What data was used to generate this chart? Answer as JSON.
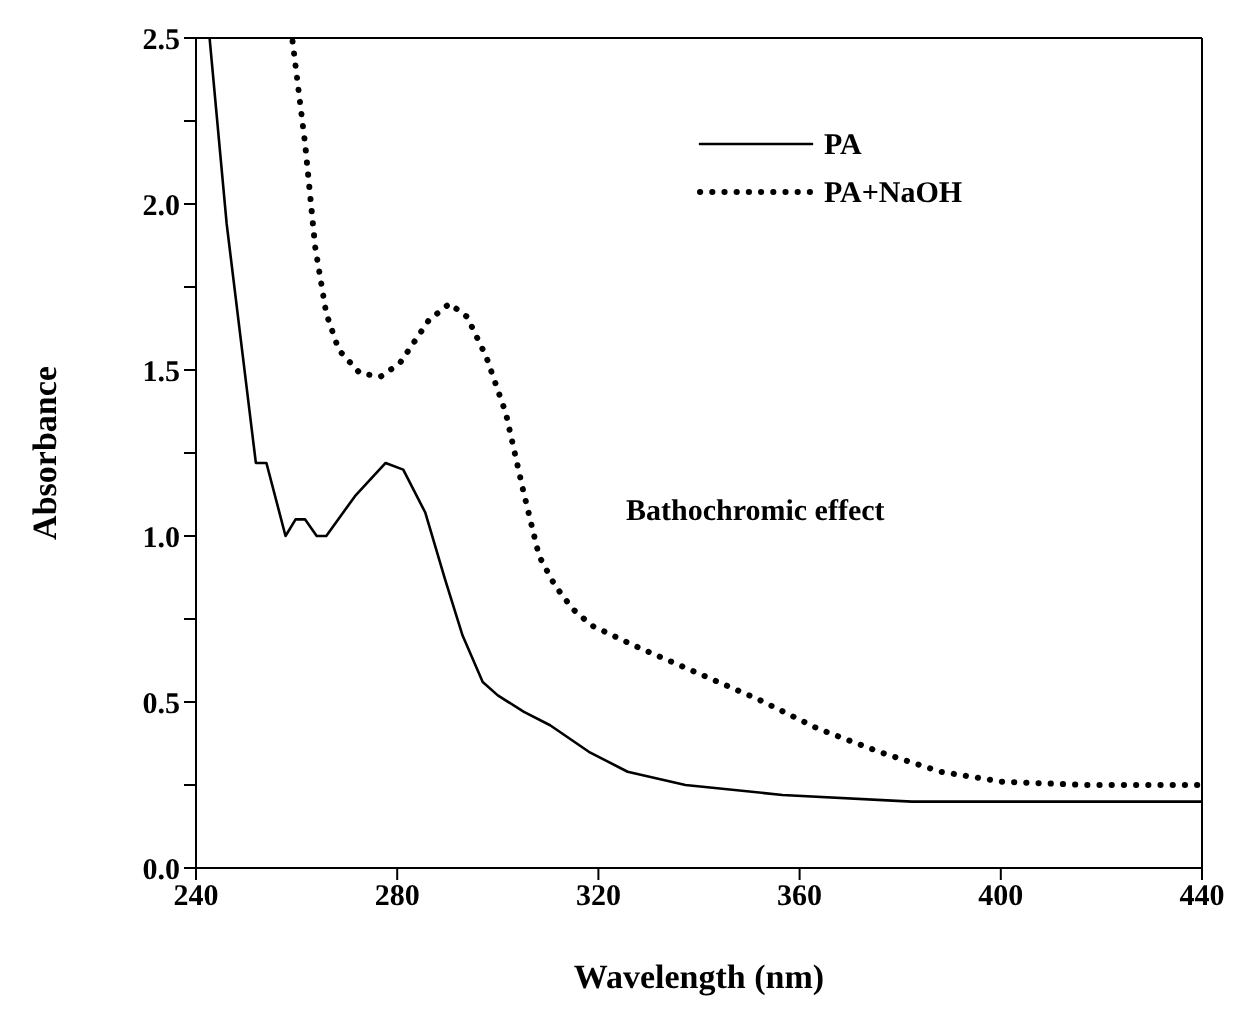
{
  "chart_data": {
    "type": "line",
    "xlabel": "Wavelength (nm)",
    "ylabel": "Absorbance",
    "annotations": [
      "Bathochromic effect"
    ],
    "xlim": [
      240,
      440
    ],
    "xticks": [
      240,
      280,
      320,
      360,
      400,
      440
    ],
    "ylim": [
      0,
      2.5
    ],
    "yticks": [
      {
        "value": 0,
        "label": "0.0"
      },
      {
        "value": 0.25,
        "label": null
      },
      {
        "value": 0.5,
        "label": "0.5"
      },
      {
        "value": 0.75,
        "label": null
      },
      {
        "value": 1,
        "label": "1.0"
      },
      {
        "value": 1.25,
        "label": null
      },
      {
        "value": 1.5,
        "label": "1.5"
      },
      {
        "value": 1.75,
        "label": null
      },
      {
        "value": 2,
        "label": "2.0"
      },
      {
        "value": 2.25,
        "label": null
      },
      {
        "value": 2.5,
        "label": "2.5"
      }
    ],
    "legend": "top right",
    "marker": "none",
    "series": [
      {
        "name": "PA",
        "color": "#000000",
        "line_style": "solid",
        "x": [
          242.7,
          246.1,
          251.9,
          254,
          257.8,
          259.8,
          261.7,
          264,
          265.9,
          271.6,
          277.7,
          281.2,
          285.6,
          289.5,
          293,
          297,
          300,
          305.2,
          310.4,
          318.1,
          325.8,
          337.3,
          356.6,
          382.3,
          440
        ],
        "values": [
          2.5,
          1.94,
          1.22,
          1.22,
          1.0,
          1.05,
          1.05,
          1.0,
          1.0,
          1.12,
          1.22,
          1.2,
          1.07,
          0.87,
          0.7,
          0.56,
          0.52,
          0.47,
          0.43,
          0.35,
          0.29,
          0.25,
          0.22,
          0.2,
          0.2
        ]
      },
      {
        "name": "PA+NaOH",
        "color": "#000000",
        "line_style": "dotted",
        "x": [
          259.2,
          261.7,
          263.7,
          265.9,
          268.4,
          272.6,
          276.7,
          280.5,
          286.3,
          290.4,
          293.9,
          297.7,
          301.6,
          305,
          308.2,
          311.4,
          314.9,
          318.7,
          327.1,
          339.3,
          351.5,
          363.6,
          375.8,
          388,
          400.2,
          416.9,
          440
        ],
        "values": [
          2.49,
          2.18,
          1.87,
          1.67,
          1.56,
          1.49,
          1.48,
          1.52,
          1.65,
          1.7,
          1.66,
          1.54,
          1.37,
          1.14,
          0.94,
          0.85,
          0.78,
          0.73,
          0.67,
          0.59,
          0.51,
          0.42,
          0.35,
          0.29,
          0.26,
          0.25,
          0.25
        ]
      }
    ]
  }
}
